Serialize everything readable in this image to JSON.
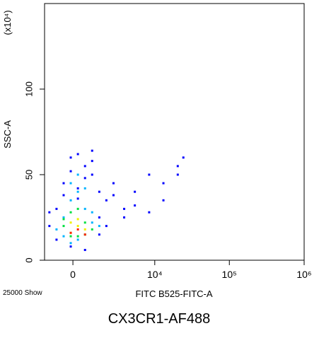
{
  "chart_data": {
    "type": "scatter",
    "title": "CX3CR1-AF488",
    "x_label": "FITC B525-FITC-A",
    "y_label": "SSC-A",
    "y_multiplier_label": "(x10⁴)",
    "event_label": "25000 Show",
    "xscale": "biexponential",
    "xlim": [
      -1600,
      1000000
    ],
    "ylim": [
      0,
      150
    ],
    "xticks": [
      0,
      {
        "value": 10000,
        "label": "10⁴"
      },
      {
        "value": 100000,
        "label": "10⁵"
      },
      {
        "value": 1000000,
        "label": "10⁶"
      }
    ],
    "yticks": [
      0,
      50,
      100
    ],
    "series": [
      {
        "color": "#0000ff",
        "x": [
          -1278,
          -852,
          -468,
          -107,
          250,
          619,
          1016,
          1465,
          1980,
          2594,
          3758,
          5330,
          8390,
          13090,
          20400,
          24250,
          -852,
          -107,
          619,
          1465,
          2594,
          3758,
          5330,
          8390,
          13090,
          1016,
          250,
          -468,
          1980,
          20400,
          -1278,
          619,
          1016,
          -107,
          250,
          1465
        ],
        "values": [
          20,
          30,
          45,
          60,
          62,
          55,
          50,
          40,
          35,
          38,
          30,
          32,
          28,
          45,
          55,
          60,
          12,
          8,
          6,
          25,
          45,
          25,
          40,
          50,
          35,
          64,
          42,
          38,
          20,
          50,
          28,
          48,
          58,
          52,
          36,
          15
        ]
      },
      {
        "color": "#00b4ff",
        "x": [
          -468,
          -107,
          250,
          619,
          1016,
          -852,
          -107,
          619,
          250,
          1016,
          -468,
          1465,
          250,
          -107
        ],
        "values": [
          25,
          35,
          40,
          30,
          22,
          18,
          45,
          42,
          12,
          28,
          14,
          20,
          50,
          10
        ]
      },
      {
        "color": "#00e040",
        "x": [
          -468,
          -107,
          250,
          619,
          250,
          -107,
          619,
          1016,
          -468
        ],
        "values": [
          20,
          28,
          30,
          22,
          14,
          14,
          15,
          18,
          24
        ]
      },
      {
        "color": "#f0f000",
        "x": [
          -107,
          250,
          619,
          250,
          -107
        ],
        "values": [
          16,
          20,
          18,
          24,
          22
        ]
      },
      {
        "color": "#ff2000",
        "x": [
          250,
          -107,
          619
        ],
        "values": [
          18,
          16,
          15
        ]
      }
    ]
  }
}
